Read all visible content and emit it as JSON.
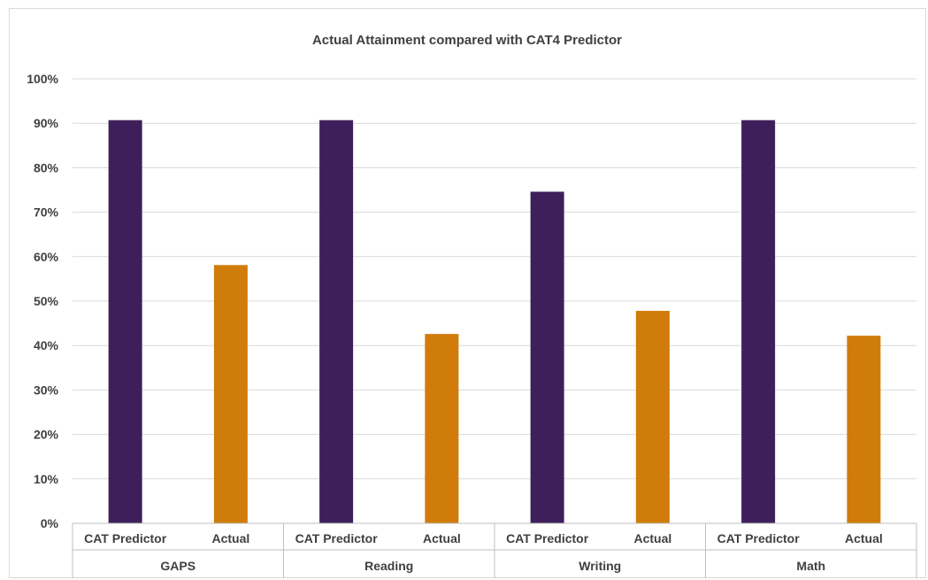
{
  "chart_data": {
    "type": "bar",
    "title": "Actual Attainment compared with CAT4 Predictor",
    "xlabel": "",
    "ylabel": "",
    "ylim": [
      0,
      100
    ],
    "yticks": [
      "0%",
      "10%",
      "20%",
      "30%",
      "40%",
      "50%",
      "60%",
      "70%",
      "80%",
      "90%",
      "100%"
    ],
    "grid": true,
    "legend": "none",
    "groups": [
      {
        "name": "GAPS",
        "bars": [
          {
            "label": "CAT Predictor",
            "value": 90.7,
            "color": "#3f1f5b"
          },
          {
            "label": "Actual",
            "value": 58.1,
            "color": "#d07c0a"
          }
        ]
      },
      {
        "name": "Reading",
        "bars": [
          {
            "label": "CAT Predictor",
            "value": 90.7,
            "color": "#3f1f5b"
          },
          {
            "label": "Actual",
            "value": 42.6,
            "color": "#d07c0a"
          }
        ]
      },
      {
        "name": "Writing",
        "bars": [
          {
            "label": "CAT Predictor",
            "value": 74.6,
            "color": "#3f1f5b"
          },
          {
            "label": "Actual",
            "value": 47.8,
            "color": "#d07c0a"
          }
        ]
      },
      {
        "name": "Math",
        "bars": [
          {
            "label": "CAT Predictor",
            "value": 90.7,
            "color": "#3f1f5b"
          },
          {
            "label": "Actual",
            "value": 42.2,
            "color": "#d07c0a"
          }
        ]
      }
    ]
  }
}
